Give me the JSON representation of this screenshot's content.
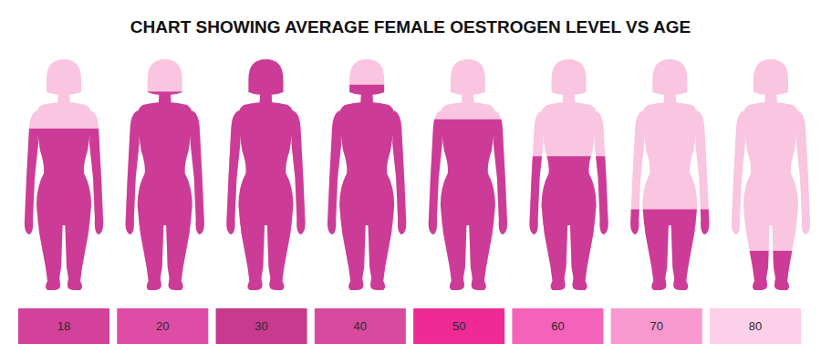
{
  "chart_data": {
    "type": "pictogram",
    "title": "CHART SHOWING AVERAGE FEMALE OESTROGEN LEVEL VS AGE",
    "categories": [
      "18",
      "20",
      "30",
      "40",
      "50",
      "60",
      "70",
      "80"
    ],
    "values": [
      70,
      86,
      100,
      89,
      74,
      58,
      35,
      17
    ],
    "ylim": [
      0,
      100
    ],
    "color": "#cc3c96",
    "colors": [
      "#d2419a",
      "#df4ca5",
      "#c73a8d",
      "#d84a9f",
      "#ef2a97",
      "#f462ba",
      "#f799cf",
      "#fcd0e8"
    ],
    "tick_labels": false
  }
}
